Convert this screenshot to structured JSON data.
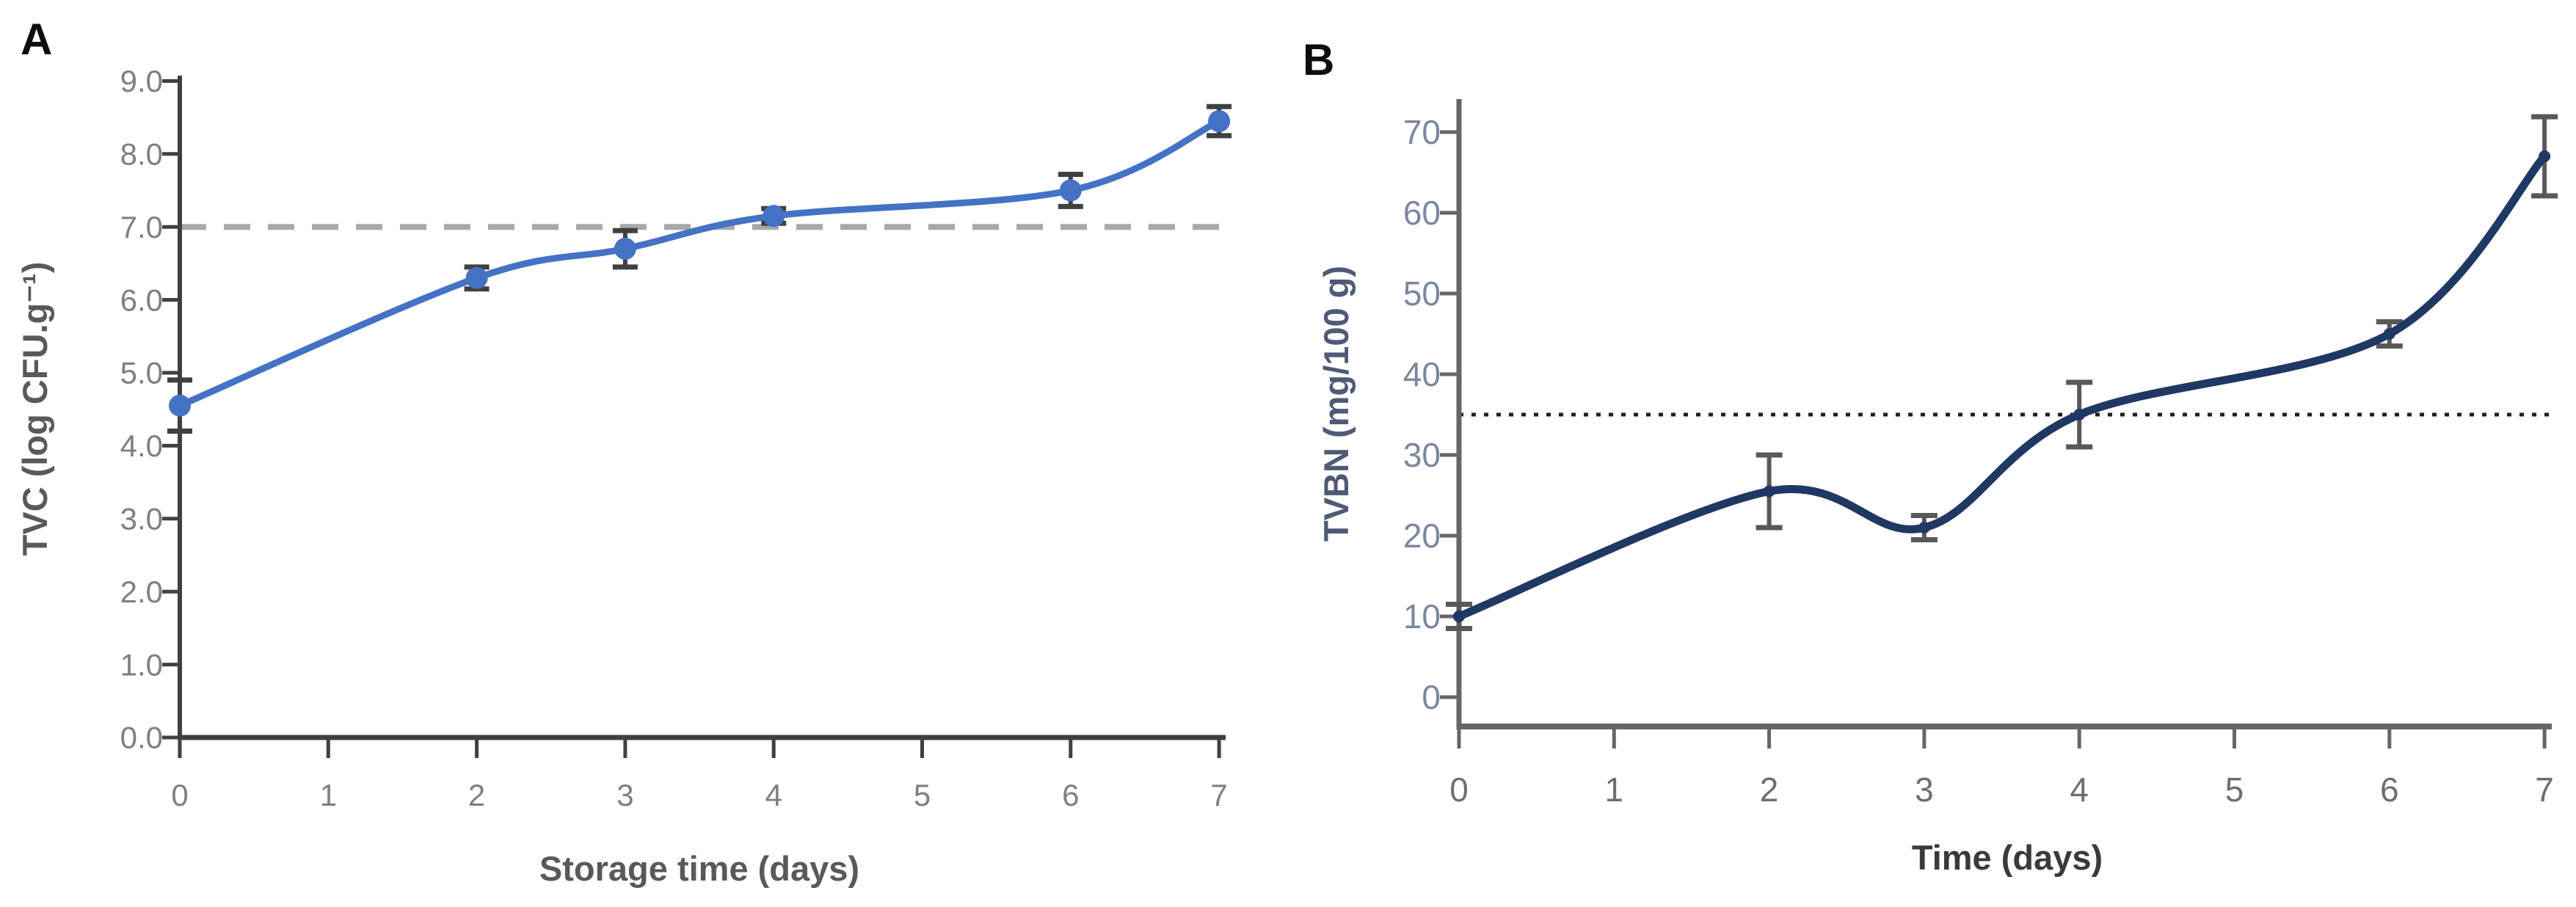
{
  "page": {
    "background": "#ffffff"
  },
  "chart_data": [
    {
      "panel_label": "A",
      "type": "line",
      "title": "",
      "xlabel": "Storage time (days)",
      "ylabel": "TVC (log CFU.g⁻¹)",
      "x": [
        0,
        2,
        3,
        4,
        6,
        7
      ],
      "values": [
        4.55,
        6.3,
        6.7,
        7.15,
        7.5,
        8.45
      ],
      "errors": [
        0.35,
        0.15,
        0.25,
        0.1,
        0.22,
        0.2
      ],
      "xlim": [
        0,
        7
      ],
      "ylim": [
        0,
        9
      ],
      "xticks": {
        "values": [
          0,
          1,
          2,
          3,
          4,
          5,
          6,
          7
        ],
        "labels": [
          "0",
          "1",
          "2",
          "3",
          "4",
          "5",
          "6",
          "7"
        ]
      },
      "yticks": {
        "values": [
          0,
          1,
          2,
          3,
          4,
          5,
          6,
          7,
          8,
          9
        ],
        "labels": [
          "0.0",
          "1.0",
          "2.0",
          "3.0",
          "4.0",
          "5.0",
          "6.0",
          "7.0",
          "8.0",
          "9.0"
        ]
      },
      "ref_line": {
        "y": 7.0,
        "style": "dashed",
        "color": "#a8a8a8"
      },
      "series_color": "#4472c4",
      "error_bar_color": "#404040",
      "axis_color": "#404040",
      "tick_label_color": "#7f7f7f",
      "marker": "circle",
      "smooth": true,
      "legend": null,
      "grid": false
    },
    {
      "panel_label": "B",
      "type": "line",
      "title": "",
      "xlabel": "Time (days)",
      "ylabel": "TVBN  (mg/100 g)",
      "x": [
        0,
        2,
        3,
        4,
        6,
        7
      ],
      "values": [
        10,
        25.5,
        21,
        35,
        45,
        67
      ],
      "errors": [
        1.5,
        4.5,
        1.5,
        4.0,
        1.5,
        4.9
      ],
      "xlim": [
        0,
        7
      ],
      "ylim": [
        0,
        70
      ],
      "xticks": {
        "values": [
          0,
          1,
          2,
          3,
          4,
          5,
          6,
          7
        ],
        "labels": [
          "0",
          "1",
          "2",
          "3",
          "4",
          "5",
          "6",
          "7"
        ]
      },
      "yticks": {
        "values": [
          0,
          10,
          20,
          30,
          40,
          50,
          60,
          70
        ],
        "labels": [
          "0",
          "10",
          "20",
          "30",
          "40",
          "50",
          "60",
          "70"
        ]
      },
      "ref_line": {
        "y": 35,
        "style": "dotted",
        "color": "#1f1f1f"
      },
      "series_color": "#1f3864",
      "error_bar_color": "#595959",
      "axis_color": "#666666",
      "tick_label_color": "#7b87a0",
      "x_tick_label_color": "#6e6e6e",
      "marker": "dot",
      "smooth": true,
      "legend": null,
      "grid": false
    }
  ]
}
